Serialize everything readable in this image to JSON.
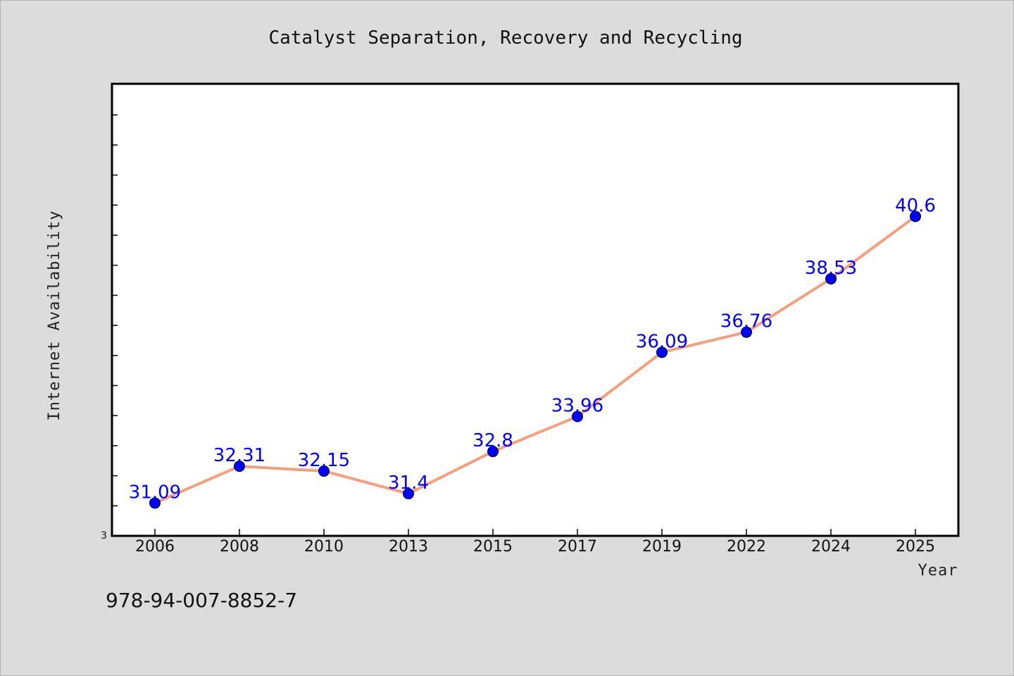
{
  "chart_data": {
    "type": "line",
    "title": "Catalyst Separation, Recovery and Recycling",
    "xlabel": "Year",
    "ylabel": "Internet Availability",
    "categories": [
      "2006",
      "2008",
      "2010",
      "2013",
      "2015",
      "2017",
      "2019",
      "2022",
      "2024",
      "2025"
    ],
    "series": [
      {
        "values": [
          31.09,
          32.31,
          32.15,
          31.4,
          32.8,
          33.96,
          36.09,
          36.76,
          38.53,
          40.6
        ]
      }
    ],
    "data_labels": [
      "31.09",
      "32.31",
      "32.15",
      "31.4",
      "32.8",
      "33.96",
      "36.09",
      "36.76",
      "38.53",
      "40.6"
    ],
    "y_tick_labels": [
      "3"
    ],
    "ylim": [
      30,
      45
    ],
    "grid": false,
    "line_color": "#f4a07f",
    "marker_color": "#0000ff",
    "label_color": "#0000ff"
  },
  "footnote": "978-94-007-8852-7"
}
